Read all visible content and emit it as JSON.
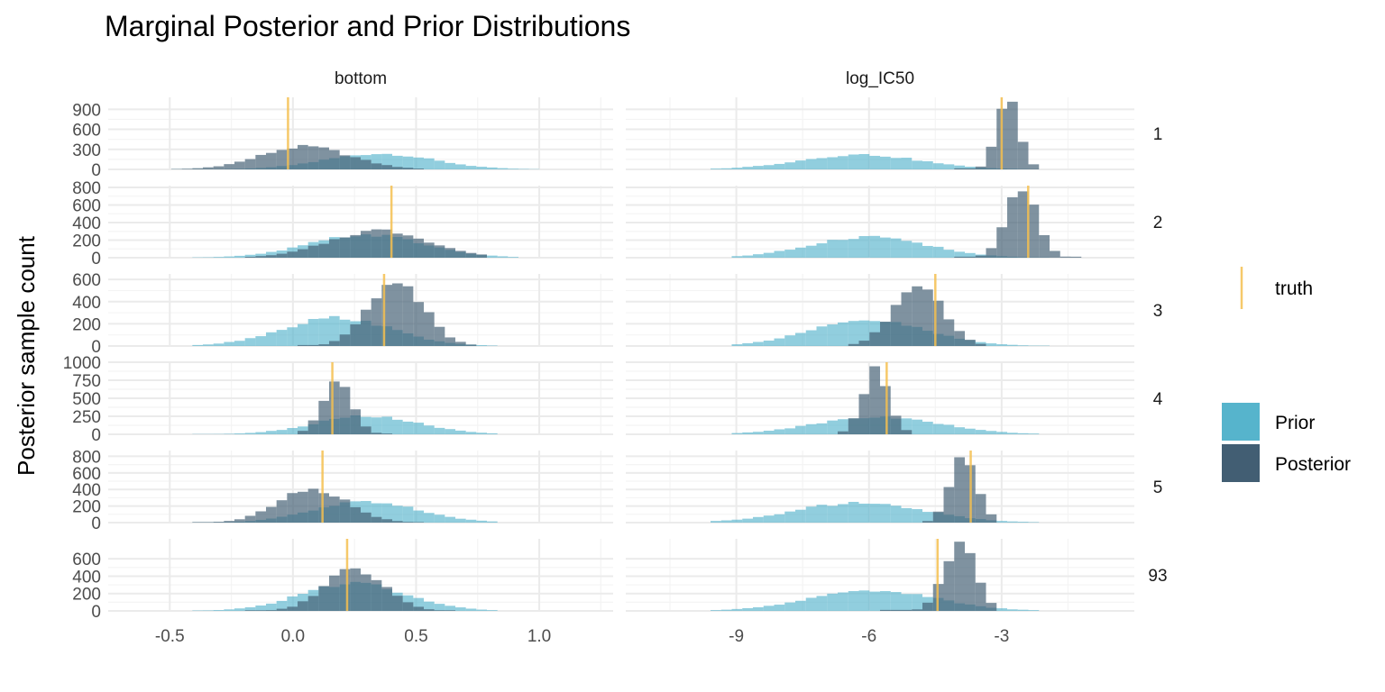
{
  "chart_data": {
    "type": "histogram-facet-grid",
    "title": "Marginal Posterior and Prior Distributions",
    "ylabel": "Posterior sample count",
    "xlabel": "",
    "columns": [
      {
        "name": "bottom",
        "xlim": [
          -0.75,
          1.3
        ],
        "xticks": [
          -0.5,
          0.0,
          0.5,
          1.0
        ],
        "xtick_labels": [
          "-0.5",
          "0.0",
          "0.5",
          "1.0"
        ]
      },
      {
        "name": "log_IC50",
        "xlim": [
          -11.5,
          0.0
        ],
        "xticks": [
          -9,
          -6,
          -3
        ],
        "xtick_labels": [
          "-9",
          "-6",
          "-3"
        ]
      }
    ],
    "rows": [
      {
        "name": "1",
        "ylim": [
          0,
          1080
        ],
        "yticks": [
          0,
          300,
          600,
          900
        ]
      },
      {
        "name": "2",
        "ylim": [
          0,
          820
        ],
        "yticks": [
          0,
          200,
          400,
          600,
          800
        ]
      },
      {
        "name": "3",
        "ylim": [
          0,
          650
        ],
        "yticks": [
          0,
          200,
          400,
          600
        ]
      },
      {
        "name": "4",
        "ylim": [
          0,
          1000
        ],
        "yticks": [
          0,
          250,
          500,
          750,
          1000
        ]
      },
      {
        "name": "5",
        "ylim": [
          0,
          870
        ],
        "yticks": [
          0,
          200,
          400,
          600,
          800
        ]
      },
      {
        "name": "93",
        "ylim": [
          0,
          830
        ],
        "yticks": [
          0,
          200,
          400,
          600
        ]
      }
    ],
    "panels": [
      {
        "row": "1",
        "col": "bottom",
        "truth": -0.02,
        "prior": {
          "center": 0.35,
          "sd": 0.22,
          "peak": 235,
          "range": [
            -0.5,
            1.0
          ]
        },
        "posterior": {
          "center": 0.05,
          "sd": 0.18,
          "peak": 340,
          "range": [
            -0.5,
            0.55
          ]
        }
      },
      {
        "row": "1",
        "col": "log_IC50",
        "truth": -3.0,
        "prior": {
          "center": -6.2,
          "sd": 1.35,
          "peak": 220,
          "range": [
            -9.5,
            -2.2
          ]
        },
        "posterior": {
          "center": -2.85,
          "sd": 0.25,
          "peak": 1050,
          "range": [
            -4.0,
            -2.2
          ]
        }
      },
      {
        "row": "2",
        "col": "bottom",
        "truth": 0.4,
        "prior": {
          "center": 0.3,
          "sd": 0.23,
          "peak": 260,
          "range": [
            -0.4,
            0.9
          ]
        },
        "posterior": {
          "center": 0.35,
          "sd": 0.2,
          "peak": 310,
          "range": [
            -0.2,
            0.8
          ]
        }
      },
      {
        "row": "2",
        "col": "log_IC50",
        "truth": -2.4,
        "prior": {
          "center": -6.0,
          "sd": 1.3,
          "peak": 240,
          "range": [
            -9.2,
            -1.8
          ]
        },
        "posterior": {
          "center": -2.55,
          "sd": 0.35,
          "peak": 760,
          "range": [
            -4.0,
            -1.3
          ]
        }
      },
      {
        "row": "3",
        "col": "bottom",
        "truth": 0.37,
        "prior": {
          "center": 0.18,
          "sd": 0.22,
          "peak": 255,
          "range": [
            -0.4,
            0.85
          ]
        },
        "posterior": {
          "center": 0.42,
          "sd": 0.11,
          "peak": 600,
          "range": [
            0.0,
            0.75
          ]
        }
      },
      {
        "row": "3",
        "col": "log_IC50",
        "truth": -4.5,
        "prior": {
          "center": -6.0,
          "sd": 1.3,
          "peak": 230,
          "range": [
            -9.0,
            -1.8
          ]
        },
        "posterior": {
          "center": -4.9,
          "sd": 0.55,
          "peak": 560,
          "range": [
            -6.5,
            -3.3
          ]
        }
      },
      {
        "row": "4",
        "col": "bottom",
        "truth": 0.16,
        "prior": {
          "center": 0.3,
          "sd": 0.21,
          "peak": 250,
          "range": [
            -0.4,
            0.85
          ]
        },
        "posterior": {
          "center": 0.18,
          "sd": 0.06,
          "peak": 700,
          "range": [
            0.0,
            0.4
          ]
        }
      },
      {
        "row": "4",
        "col": "log_IC50",
        "truth": -5.6,
        "prior": {
          "center": -5.8,
          "sd": 1.4,
          "peak": 240,
          "range": [
            -9.0,
            -2.2
          ]
        },
        "posterior": {
          "center": -5.85,
          "sd": 0.3,
          "peak": 880,
          "range": [
            -6.8,
            -5.0
          ]
        }
      },
      {
        "row": "5",
        "col": "bottom",
        "truth": 0.12,
        "prior": {
          "center": 0.3,
          "sd": 0.21,
          "peak": 255,
          "range": [
            -0.4,
            0.85
          ]
        },
        "posterior": {
          "center": 0.08,
          "sd": 0.14,
          "peak": 400,
          "range": [
            -0.4,
            0.55
          ]
        }
      },
      {
        "row": "5",
        "col": "log_IC50",
        "truth": -3.7,
        "prior": {
          "center": -6.2,
          "sd": 1.45,
          "peak": 240,
          "range": [
            -9.5,
            -2.2
          ]
        },
        "posterior": {
          "center": -3.85,
          "sd": 0.3,
          "peak": 820,
          "range": [
            -4.7,
            -3.0
          ]
        }
      },
      {
        "row": "93",
        "col": "bottom",
        "truth": 0.22,
        "prior": {
          "center": 0.25,
          "sd": 0.21,
          "peak": 320,
          "range": [
            -0.4,
            0.85
          ]
        },
        "posterior": {
          "center": 0.25,
          "sd": 0.12,
          "peak": 480,
          "range": [
            -0.2,
            0.65
          ]
        }
      },
      {
        "row": "93",
        "col": "log_IC50",
        "truth": -4.45,
        "prior": {
          "center": -5.9,
          "sd": 1.4,
          "peak": 240,
          "range": [
            -9.5,
            -2.2
          ]
        },
        "posterior": {
          "center": -3.95,
          "sd": 0.35,
          "peak": 780,
          "range": [
            -5.8,
            -3.2
          ]
        }
      }
    ],
    "bins": 48,
    "legend": {
      "position": "right",
      "truth_label": "truth",
      "entries": [
        {
          "label": "Prior",
          "color": "#56b4cc"
        },
        {
          "label": "Posterior",
          "color": "#425e73"
        }
      ]
    },
    "colors": {
      "prior": "#56b4cc",
      "posterior": "#425e73",
      "truth": "#f5c050",
      "grid_major": "#ebebeb",
      "grid_minor": "#f4f4f4"
    }
  }
}
